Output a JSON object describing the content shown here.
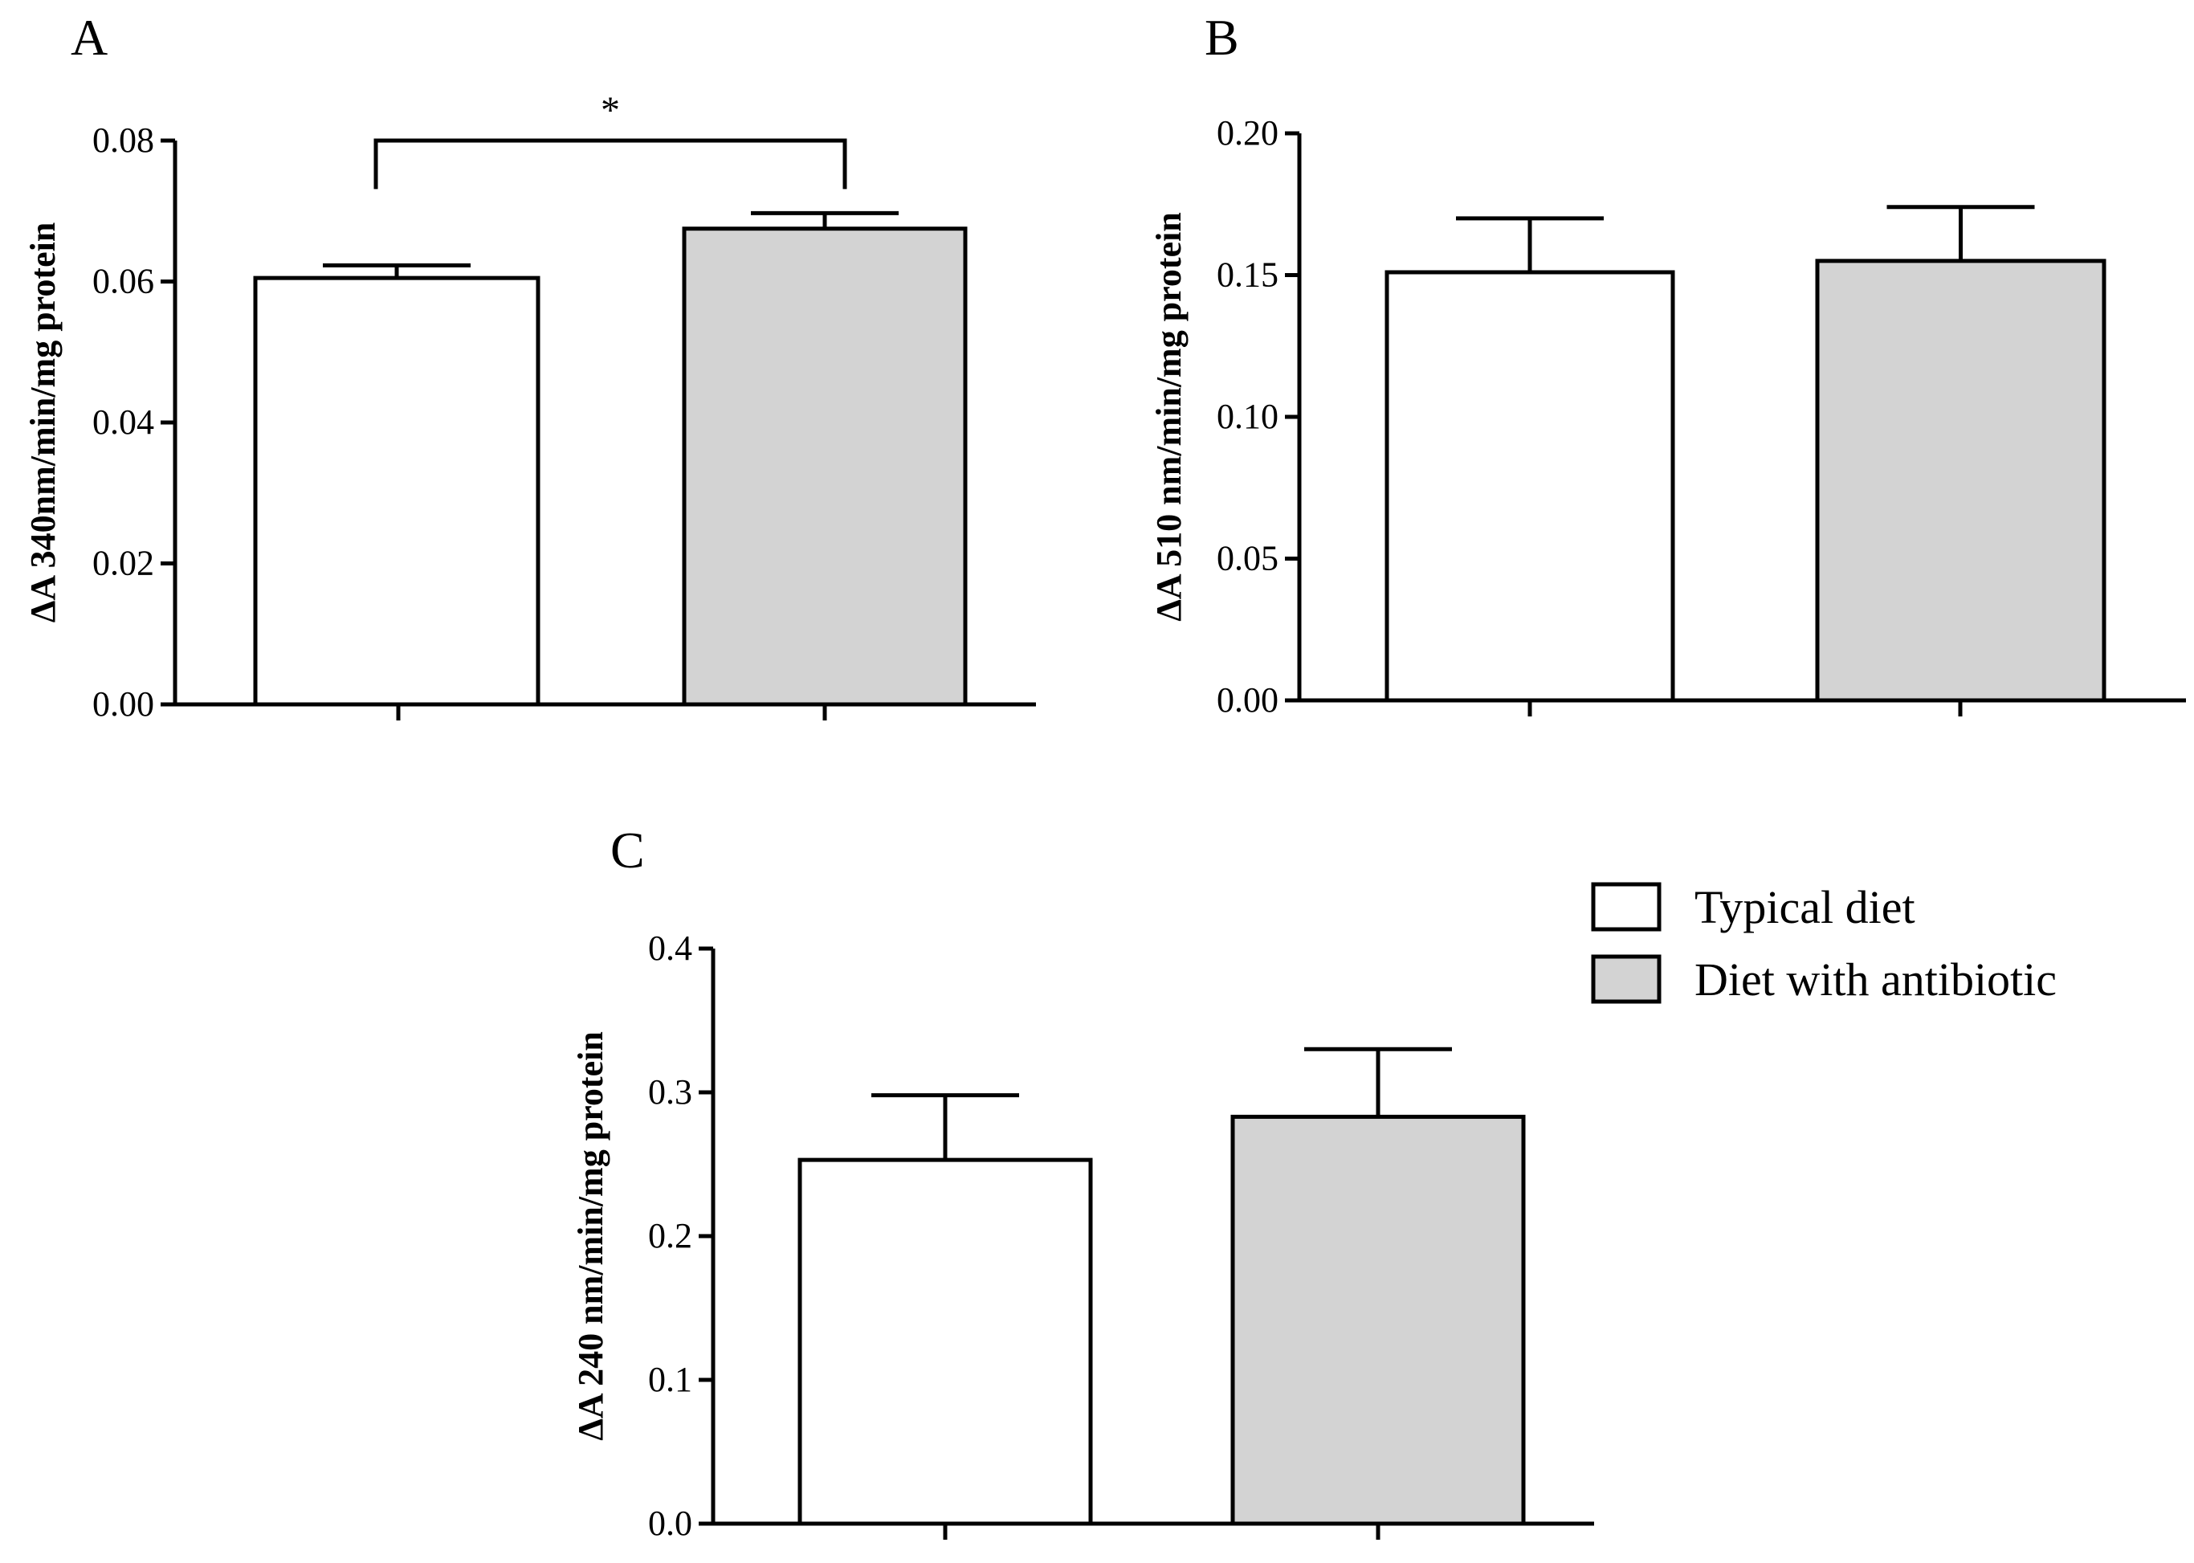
{
  "chart_data": [
    {
      "type": "bar",
      "panel_label": "A",
      "ylabel": "ΔA 340nm/min/mg protein",
      "ylim": [
        0,
        0.08
      ],
      "yticks": [
        0.0,
        0.02,
        0.04,
        0.06,
        0.08
      ],
      "ytick_labels": [
        "0.00",
        "0.02",
        "0.04",
        "0.06",
        "0.08"
      ],
      "categories": [
        "Typical diet",
        "Diet with antibiotic"
      ],
      "values": [
        0.0605,
        0.0675
      ],
      "errors": [
        0.0018,
        0.0022
      ],
      "significance": {
        "between": [
          0,
          1
        ],
        "label": "*",
        "y": 0.08
      }
    },
    {
      "type": "bar",
      "panel_label": "B",
      "ylabel": "ΔA 510 nm/min/mg protein",
      "ylim": [
        0,
        0.2
      ],
      "yticks": [
        0.0,
        0.05,
        0.1,
        0.15,
        0.2
      ],
      "ytick_labels": [
        "0.00",
        "0.05",
        "0.10",
        "0.15",
        "0.20"
      ],
      "categories": [
        "Typical diet",
        "Diet with antibiotic"
      ],
      "values": [
        0.151,
        0.155
      ],
      "errors": [
        0.019,
        0.019
      ]
    },
    {
      "type": "bar",
      "panel_label": "C",
      "ylabel": "ΔA 240 nm/min/mg protein",
      "ylim": [
        0,
        0.4
      ],
      "yticks": [
        0.0,
        0.1,
        0.2,
        0.3,
        0.4
      ],
      "ytick_labels": [
        "0.0",
        "0.1",
        "0.2",
        "0.3",
        "0.4"
      ],
      "categories": [
        "Typical diet",
        "Diet with antibiotic"
      ],
      "values": [
        0.253,
        0.283
      ],
      "errors": [
        0.045,
        0.047
      ]
    }
  ],
  "legend": {
    "placement": "right of panel C",
    "entries": [
      {
        "label": "Typical diet",
        "color": "#ffffff"
      },
      {
        "label": "Diet with antibiotic",
        "color": "#d3d3d3"
      }
    ]
  },
  "colors": {
    "typical_diet": "#ffffff",
    "diet_with_antibiotic": "#d3d3d3",
    "stroke": "#000000"
  }
}
